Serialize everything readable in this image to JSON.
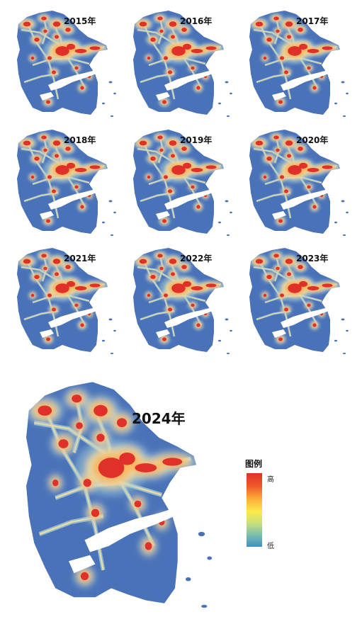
{
  "panels": [
    {
      "year": "2015年"
    },
    {
      "year": "2016年"
    },
    {
      "year": "2017年"
    },
    {
      "year": "2018年"
    },
    {
      "year": "2019年"
    },
    {
      "year": "2020年"
    },
    {
      "year": "2021年"
    },
    {
      "year": "2022年"
    },
    {
      "year": "2023年"
    }
  ],
  "main_panel": {
    "year": "2024年"
  },
  "legend": {
    "title": "图例",
    "high": "高",
    "low": "低"
  },
  "colors": {
    "base": "#4a72b8",
    "low_mid": "#9cc6d6",
    "mid": "#f4dfa0",
    "mid_high": "#f7b25a",
    "high": "#e0302a"
  }
}
